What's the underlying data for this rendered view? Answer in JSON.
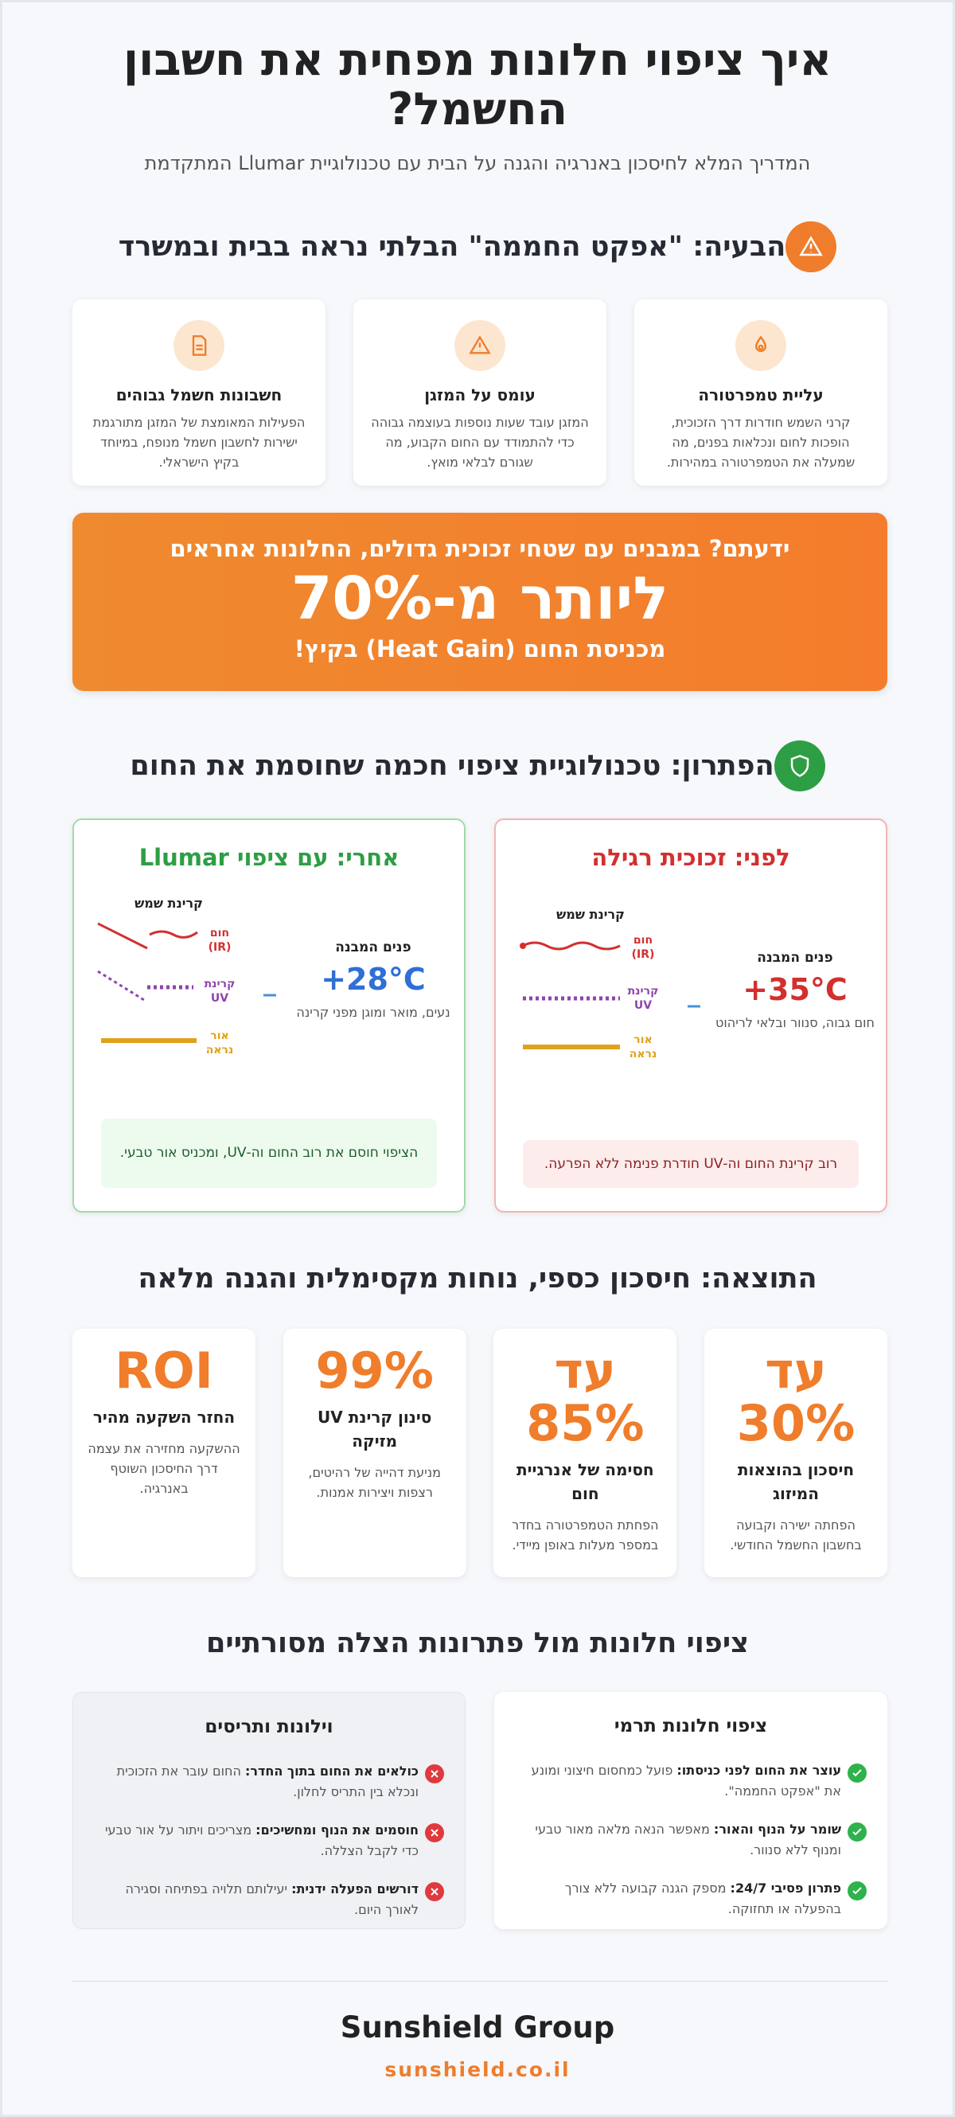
{
  "header": {
    "title": "איך ציפוי חלונות מפחית את חשבון החשמל?",
    "subtitle": "המדריך המלא לחיסכון באנרגיה והגנה על הבית עם טכנולוגיית Llumar המתקדמת"
  },
  "problem": {
    "heading": "הבעיה: \"אפקט החממה\" הבלתי נראה בבית ובמשרד",
    "cards": [
      {
        "title": "עליית טמפרטורה",
        "text": "קרני השמש חודרות דרך הזכוכית, הופכות לחום ונכלאות בפנים, מה שמעלה את הטמפרטורה במהירות."
      },
      {
        "title": "עומס על המזגן",
        "text": "המזגן עובד שעות נוספות בעוצמה גבוהה כדי להתמודד עם החום הקבוע, מה שגורם לבלאי מואץ."
      },
      {
        "title": "חשבונות חשמל גבוהים",
        "text": "הפעילות המאומצת של המזגן מתורגמת ישירות לחשבון חשמל מנופח, במיוחד בקיץ הישראלי."
      }
    ]
  },
  "banner": {
    "lead": "ידעתם? במבנים עם שטחי זכוכית גדולים, החלונות אחראים",
    "highlight": "ליותר מ-70%",
    "tail": "מכניסת החום (Heat Gain) בקיץ!"
  },
  "solution": {
    "heading": "הפתרון: טכנולוגיית ציפוי חכמה שחוסמת את החום",
    "before": {
      "title": "לפני: זכוכית רגילה",
      "sun_label": "קרינת שמש",
      "ir_label": "חום (IR)",
      "uv_label": "קרינת UV",
      "light_label": "אור נראה",
      "interior_label": "פנים המבנה",
      "temperature": "35°C+",
      "interior_text": "חום גבוה, סנוור ובלאי לריהוט",
      "note": "רוב קרינת החום וה-UV חודרת פנימה ללא הפרעה."
    },
    "after": {
      "title": "אחרי: עם ציפוי Llumar",
      "sun_label": "קרינת שמש",
      "ir_label": "חום (IR)",
      "uv_label": "קרינת UV",
      "light_label": "אור נראה",
      "interior_label": "פנים המבנה",
      "temperature": "28°C+",
      "interior_text": "נעים, מואר ומוגן מפני קרינה",
      "note": "הציפוי חוסם את רוב החום וה-UV, ומכניס אור טבעי."
    }
  },
  "results": {
    "heading": "התוצאה: חיסכון כספי, נוחות מקסימלית והגנה מלאה",
    "cards": [
      {
        "stat": "עד 30%",
        "title": "חיסכון בהוצאות המיזוג",
        "text": "הפחתה ישירה וקבועה בחשבון החשמל החודשי."
      },
      {
        "stat": "עד 85%",
        "title": "חסימה של אנרגיית חום",
        "text": "הפחתת הטמפרטורה בחדר במספר מעלות באופן מיידי."
      },
      {
        "stat": "99%",
        "title": "סינון קרינת UV מזיקה",
        "text": "מניעת דהייה של רהיטים, רצפות ויצירות אמנות."
      },
      {
        "stat": "ROI",
        "title": "החזר השקעה מהיר",
        "text": "ההשקעה מחזירה את עצמה דרך החיסכון השוטף באנרגיה."
      }
    ]
  },
  "comparison": {
    "heading": "ציפוי חלונות מול פתרונות הצלה מסורתיים",
    "columns": [
      {
        "title": "ציפוי חלונות תרמי",
        "items": [
          {
            "lead": "עוצר את החום לפני כניסתו:",
            "text": "פועל כמחסום חיצוני ומונע את \"אפקט החממה\"."
          },
          {
            "lead": "שומר על הנוף והאור:",
            "text": "מאפשר הנאה מלאה מאור טבעי ומנוף ללא סנוור."
          },
          {
            "lead": "פתרון פסיבי 24/7:",
            "text": "מספק הגנה קבועה ללא צורך בהפעלה או תחזוקה."
          }
        ]
      },
      {
        "title": "וילונות ותריסים",
        "items": [
          {
            "lead": "כולאים את החום בתוך החדר:",
            "text": "החום עובר את הזכוכית ונכלא בין התריס לחלון."
          },
          {
            "lead": "חוסמים את הנוף ומחשיכים:",
            "text": "מצריכים ויתור על אור טבעי כדי לקבל הצללה."
          },
          {
            "lead": "דורשים הפעלה ידנית:",
            "text": "יעילותם תלויה בפתיחה וסגירה לאורך היום."
          }
        ]
      }
    ]
  },
  "footer": {
    "brand": "Sunshield Group",
    "url": "sunshield.co.il"
  }
}
